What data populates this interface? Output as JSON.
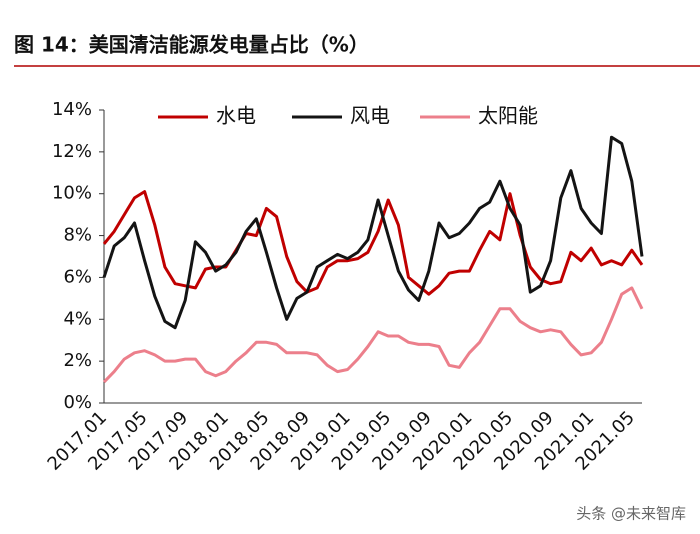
{
  "header": {
    "title": "图 14：美国清洁能源发电量占比（%）"
  },
  "chart_data": {
    "type": "line",
    "categories": [
      "2017.01",
      null,
      null,
      null,
      "2017.05",
      null,
      null,
      null,
      "2017.09",
      null,
      null,
      null,
      "2018.01",
      null,
      null,
      null,
      "2018.05",
      null,
      null,
      null,
      "2018.09",
      null,
      null,
      null,
      "2019.01",
      null,
      null,
      null,
      "2019.05",
      null,
      null,
      null,
      "2019.09",
      null,
      null,
      null,
      "2020.01",
      null,
      null,
      null,
      "2020.05",
      null,
      null,
      null,
      "2020.09",
      null,
      null,
      null,
      "2021.01",
      null,
      null,
      null,
      "2021.05",
      null
    ],
    "series": [
      {
        "name": "水电",
        "color": "#c00000",
        "values": [
          7.6,
          8.2,
          9.0,
          9.8,
          10.1,
          8.5,
          6.5,
          5.7,
          5.6,
          5.5,
          6.4,
          6.5,
          6.5,
          7.3,
          8.1,
          8.0,
          9.3,
          8.9,
          7.0,
          5.8,
          5.3,
          5.5,
          6.5,
          6.8,
          6.8,
          6.9,
          7.2,
          8.2,
          9.7,
          8.5,
          6.0,
          5.6,
          5.2,
          5.6,
          6.2,
          6.3,
          6.3,
          7.3,
          8.2,
          7.8,
          10.0,
          8.0,
          6.5,
          5.9,
          5.7,
          5.8,
          7.2,
          6.8,
          7.4,
          6.6,
          6.8,
          6.6,
          7.3,
          6.6
        ]
      },
      {
        "name": "风电",
        "color": "#141414",
        "values": [
          6.0,
          7.5,
          7.9,
          8.6,
          6.8,
          5.1,
          3.9,
          3.6,
          4.9,
          7.7,
          7.2,
          6.3,
          6.6,
          7.2,
          8.2,
          8.8,
          7.2,
          5.5,
          4.0,
          5.0,
          5.3,
          6.5,
          6.8,
          7.1,
          6.9,
          7.2,
          7.8,
          9.7,
          8.0,
          6.3,
          5.4,
          4.9,
          6.3,
          8.6,
          7.9,
          8.1,
          8.6,
          9.3,
          9.6,
          10.6,
          9.3,
          8.5,
          5.3,
          5.6,
          6.8,
          9.8,
          11.1,
          9.3,
          8.6,
          8.1,
          12.7,
          12.4,
          10.6,
          7.0
        ]
      },
      {
        "name": "太阳能",
        "color": "#ec7f8b",
        "values": [
          1.0,
          1.5,
          2.1,
          2.4,
          2.5,
          2.3,
          2.0,
          2.0,
          2.1,
          2.1,
          1.5,
          1.3,
          1.5,
          2.0,
          2.4,
          2.9,
          2.9,
          2.8,
          2.4,
          2.4,
          2.4,
          2.3,
          1.8,
          1.5,
          1.6,
          2.1,
          2.7,
          3.4,
          3.2,
          3.2,
          2.9,
          2.8,
          2.8,
          2.7,
          1.8,
          1.7,
          2.4,
          2.9,
          3.7,
          4.5,
          4.5,
          3.9,
          3.6,
          3.4,
          3.5,
          3.4,
          2.8,
          2.3,
          2.4,
          2.9,
          4.0,
          5.2,
          5.5,
          4.5
        ]
      }
    ],
    "ylim": [
      0,
      14
    ],
    "yticks": [
      {
        "value": 0,
        "label": "0%"
      },
      {
        "value": 2,
        "label": "2%"
      },
      {
        "value": 4,
        "label": "4%"
      },
      {
        "value": 6,
        "label": "6%"
      },
      {
        "value": 8,
        "label": "8%"
      },
      {
        "value": 10,
        "label": "10%"
      },
      {
        "value": 12,
        "label": "12%"
      },
      {
        "value": 14,
        "label": "14%"
      }
    ],
    "legend": "top",
    "grid": false
  },
  "watermark": "头条 @未来智库"
}
